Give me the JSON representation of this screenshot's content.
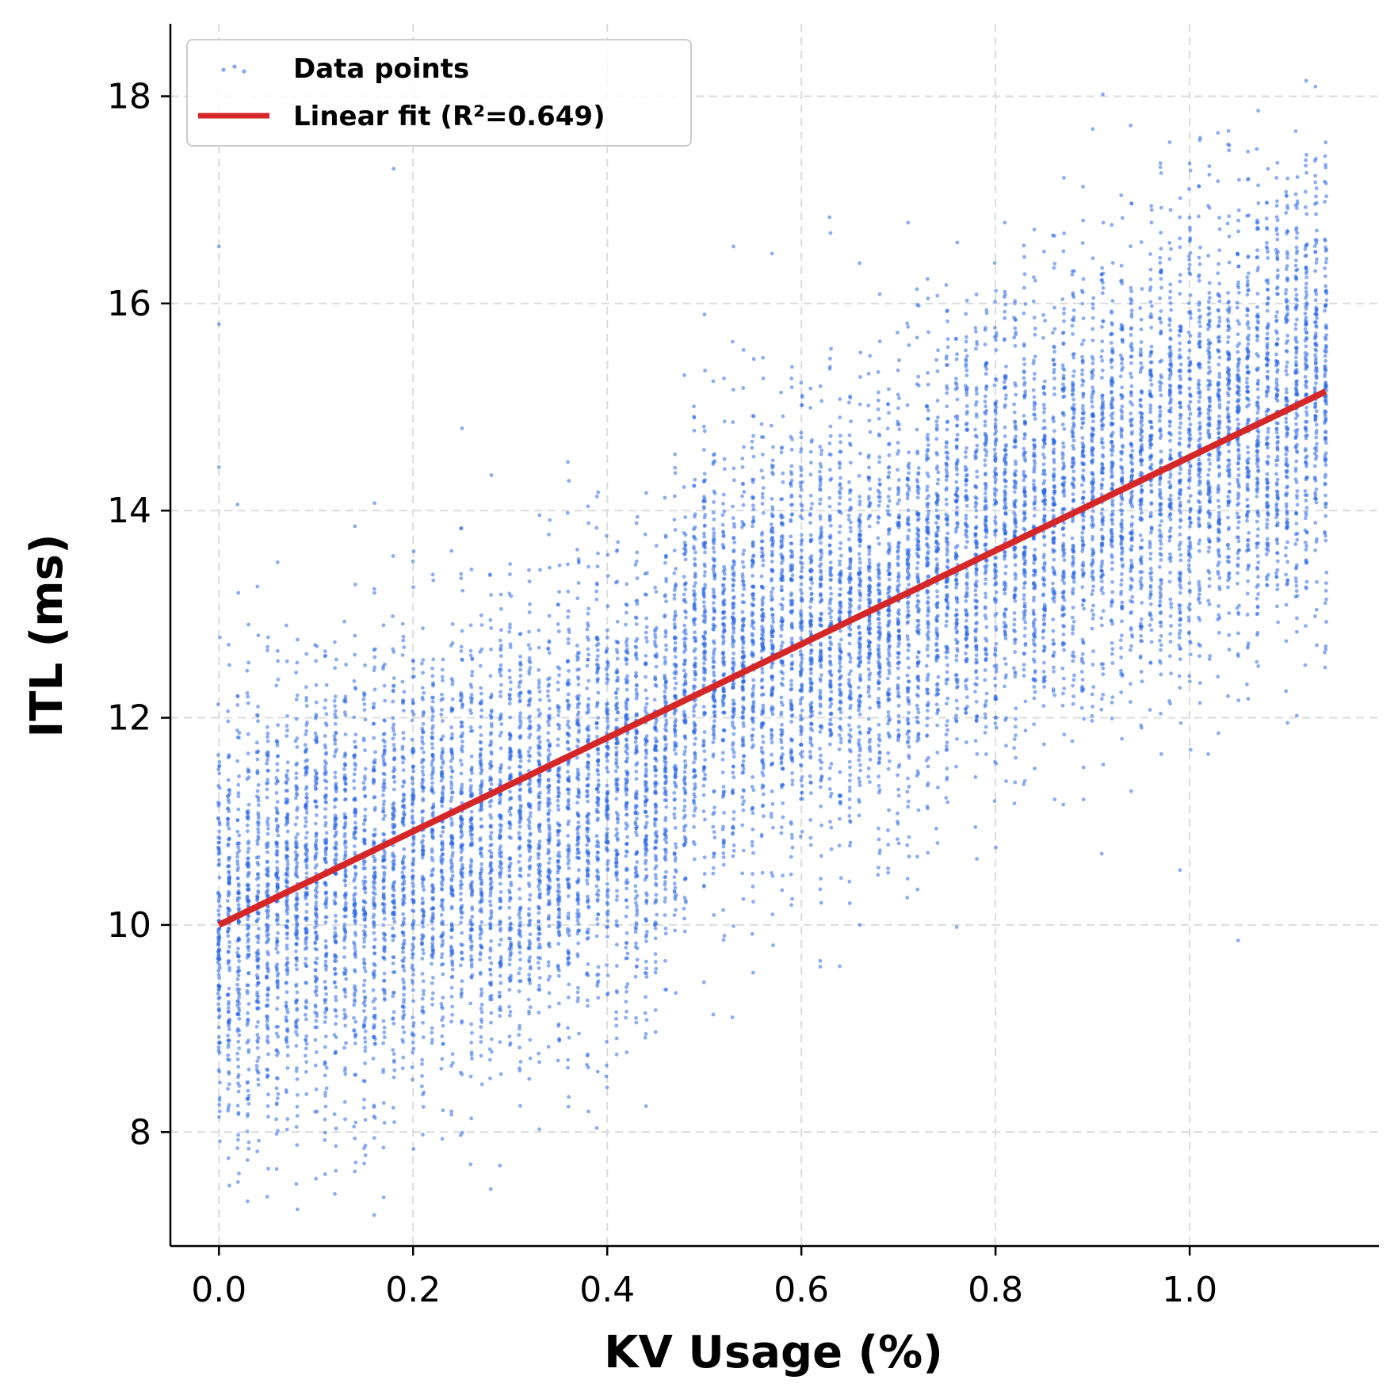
{
  "chart_data": {
    "type": "scatter",
    "xlabel": "KV Usage (%)",
    "ylabel": "ITL (ms)",
    "xlim": [
      -0.05,
      1.195
    ],
    "ylim": [
      6.9,
      18.7
    ],
    "x_ticks": [
      0.0,
      0.2,
      0.4,
      0.6,
      0.8,
      1.0
    ],
    "x_tick_labels": [
      "0.0",
      "0.2",
      "0.4",
      "0.6",
      "0.8",
      "1.0"
    ],
    "y_ticks": [
      8,
      10,
      12,
      14,
      16,
      18
    ],
    "y_tick_labels": [
      "8",
      "10",
      "12",
      "14",
      "16",
      "18"
    ],
    "grid": true,
    "legend_position": "top-left",
    "series": [
      {
        "name": "Data points",
        "kind": "scatter",
        "color": "#2e6ae6",
        "distribution": {
          "x_range": [
            0.0,
            1.14
          ],
          "x_step": 0.01,
          "mean_by_x": [
            [
              0.0,
              10.0
            ],
            [
              0.45,
              11.4
            ],
            [
              0.5,
              12.6
            ],
            [
              0.7,
              13.0
            ],
            [
              0.75,
              13.6
            ],
            [
              1.14,
              15.2
            ]
          ],
          "spread_sd": 1.05
        },
        "points": [
          [
            0.0,
            16.55
          ],
          [
            0.0,
            15.8
          ],
          [
            0.0,
            14.42
          ],
          [
            0.28,
            7.45
          ],
          [
            0.18,
            17.3
          ],
          [
            0.53,
            16.55
          ],
          [
            0.63,
            16.68
          ],
          [
            0.71,
            16.78
          ],
          [
            0.99,
            10.53
          ],
          [
            0.1,
            7.55
          ],
          [
            0.14,
            7.62
          ],
          [
            0.44,
            8.25
          ],
          [
            1.12,
            18.15
          ],
          [
            1.05,
            9.85
          ],
          [
            0.76,
            9.98
          ]
        ]
      },
      {
        "name": "Linear fit (R²=0.649)",
        "kind": "line",
        "color": "#d62728",
        "x": [
          0.0,
          1.14
        ],
        "y": [
          10.0,
          15.15
        ]
      }
    ]
  }
}
